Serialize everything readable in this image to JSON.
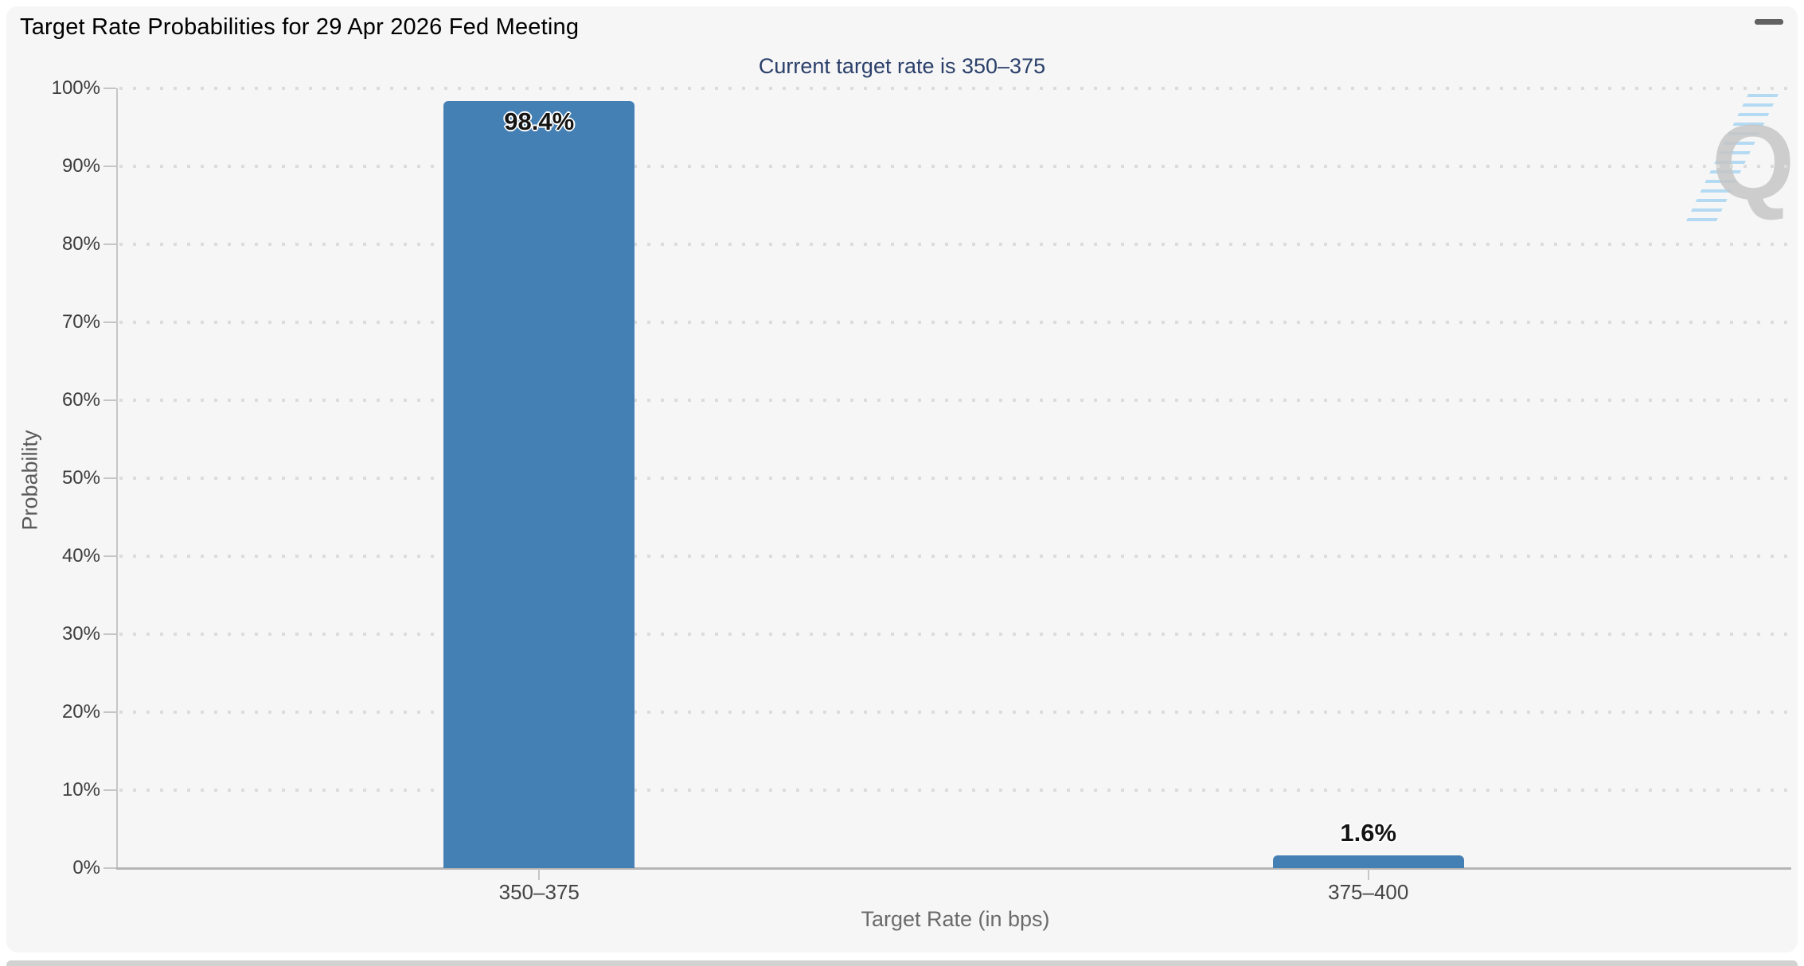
{
  "header": {
    "menu_icon": "hamburger-icon"
  },
  "chart_data": {
    "type": "bar",
    "title": "Target Rate Probabilities for 29 Apr 2026 Fed Meeting",
    "subtitle": "Current target rate is 350–375",
    "categories": [
      "350–375",
      "375–400"
    ],
    "values": [
      98.4,
      1.6
    ],
    "value_labels": [
      "98.4%",
      "1.6%"
    ],
    "xlabel": "Target Rate (in bps)",
    "ylabel": "Probability",
    "ylim": [
      0,
      100
    ],
    "ytick_labels": [
      "0%",
      "10%",
      "20%",
      "30%",
      "40%",
      "50%",
      "60%",
      "70%",
      "80%",
      "90%",
      "100%"
    ],
    "grid": "dotted-horizontal",
    "legend": "none",
    "bar_color": "#4580b5",
    "colors": {
      "card_background": "#f6f6f6",
      "subtitle_text": "#2a3f6a",
      "axis_line": "#b5b5b5",
      "grid_dots": "#dcdcdc",
      "watermark": "#c6c6c6"
    },
    "watermark_letter": "Q"
  }
}
